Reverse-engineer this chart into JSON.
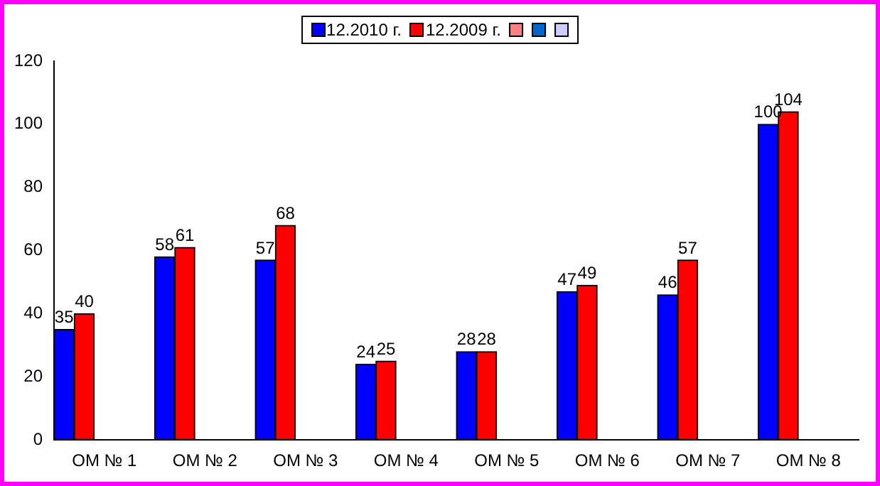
{
  "chart_data": {
    "type": "bar",
    "categories": [
      "ОМ № 1",
      "ОМ № 2",
      "ОМ № 3",
      "ОМ № 4",
      "ОМ № 5",
      "ОМ № 6",
      "ОМ № 7",
      "ОМ № 8"
    ],
    "series": [
      {
        "name": "12.2010 г.",
        "color": "#0000ff",
        "values": [
          35,
          58,
          57,
          24,
          28,
          47,
          46,
          100
        ]
      },
      {
        "name": "12.2009 г.",
        "color": "#ff0000",
        "values": [
          40,
          61,
          68,
          25,
          28,
          49,
          57,
          104
        ]
      },
      {
        "color": "#ff8080",
        "values": [
          null,
          null,
          null,
          null,
          null,
          null,
          null,
          null
        ]
      },
      {
        "color": "#0066cc",
        "values": [
          null,
          null,
          null,
          null,
          null,
          null,
          null,
          null
        ]
      },
      {
        "color": "#ccccff",
        "values": [
          null,
          null,
          null,
          null,
          null,
          null,
          null,
          null
        ]
      }
    ],
    "ylim": [
      0,
      120
    ],
    "yticks": [
      0,
      20,
      40,
      60,
      80,
      100,
      120
    ],
    "grid": false,
    "legend": "top",
    "data_labels": true
  }
}
